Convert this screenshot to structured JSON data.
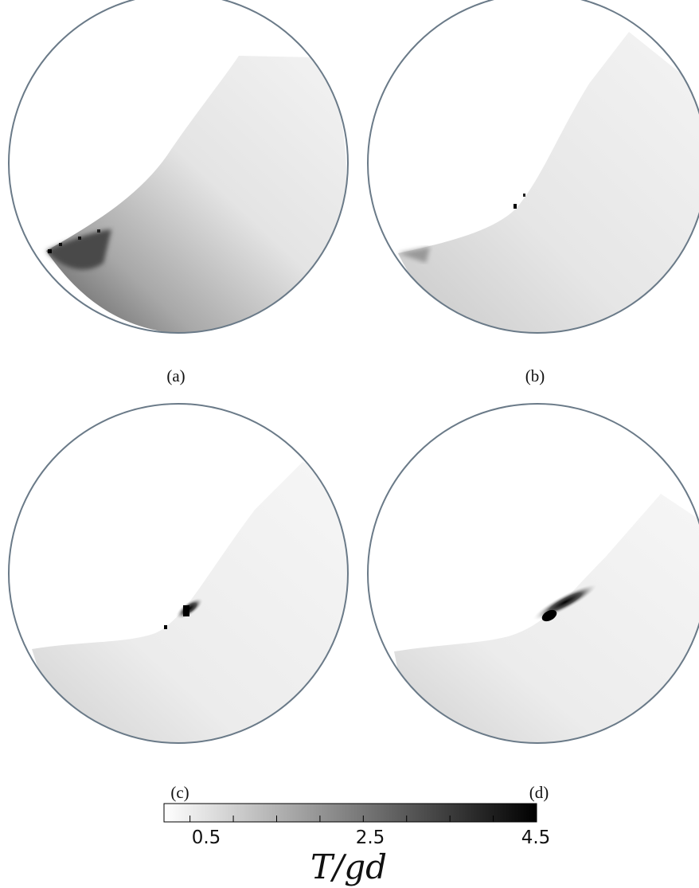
{
  "panels": [
    {
      "label": "(a)"
    },
    {
      "label": "(b)"
    },
    {
      "label": "(c)"
    },
    {
      "label": "(d)"
    }
  ],
  "colorbar": {
    "title": "T/gd",
    "min": 0.2,
    "max": 4.5,
    "tick_labels": [
      "0.5",
      "2.5",
      "4.5"
    ],
    "colors": {
      "low": "#ffffff",
      "high": "#000000"
    }
  }
}
